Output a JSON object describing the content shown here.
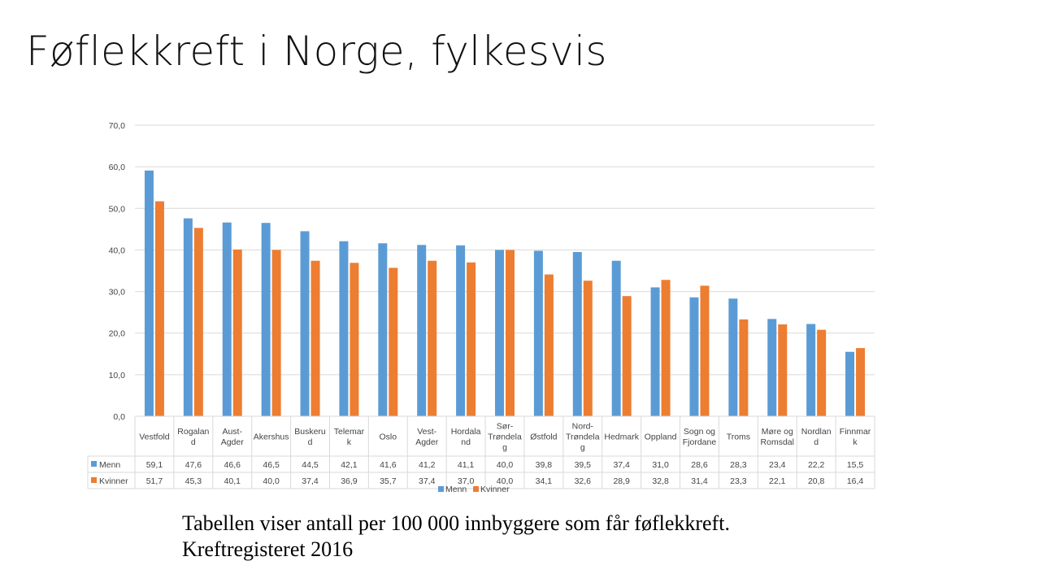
{
  "title": "Føflekkreft i Norge, fylkesvis",
  "caption": {
    "line1": "Tabellen viser antall per 100 000 innbyggere som får føflekkreft.",
    "line2": "Kreftregisteret 2016"
  },
  "chart_data": {
    "type": "bar",
    "title": "",
    "xlabel": "",
    "ylabel": "",
    "ylim": [
      0,
      70
    ],
    "yticks": [
      0,
      10,
      20,
      30,
      40,
      50,
      60,
      70
    ],
    "ytick_labels": [
      "0,0",
      "10,0",
      "20,0",
      "30,0",
      "40,0",
      "50,0",
      "60,0",
      "70,0"
    ],
    "grid": true,
    "legend_position": "bottom",
    "categories": [
      "Vestfold",
      "Rogalan\nd",
      "Aust-\nAgder",
      "Akershus",
      "Buskeru\nd",
      "Telemar\nk",
      "Oslo",
      "Vest-\nAgder",
      "Hordala\nnd",
      "Sør-\nTrøndela\ng",
      "Østfold",
      "Nord-\nTrøndela\ng",
      "Hedmark",
      "Oppland",
      "Sogn og\nFjordane",
      "Troms",
      "Møre og\nRomsdal",
      "Nordlan\nd",
      "Finnmar\nk"
    ],
    "series": [
      {
        "name": "Menn",
        "color": "#5B9BD5",
        "values": [
          59.1,
          47.6,
          46.6,
          46.5,
          44.5,
          42.1,
          41.6,
          41.2,
          41.1,
          40.0,
          39.8,
          39.5,
          37.4,
          31.0,
          28.6,
          28.3,
          23.4,
          22.2,
          15.5
        ],
        "labels": [
          "59,1",
          "47,6",
          "46,6",
          "46,5",
          "44,5",
          "42,1",
          "41,6",
          "41,2",
          "41,1",
          "40,0",
          "39,8",
          "39,5",
          "37,4",
          "31,0",
          "28,6",
          "28,3",
          "23,4",
          "22,2",
          "15,5"
        ]
      },
      {
        "name": "Kvinner",
        "color": "#ED7D31",
        "values": [
          51.7,
          45.3,
          40.1,
          40.0,
          37.4,
          36.9,
          35.7,
          37.4,
          37.0,
          40.0,
          34.1,
          32.6,
          28.9,
          32.8,
          31.4,
          23.3,
          22.1,
          20.8,
          16.4
        ],
        "labels": [
          "51,7",
          "45,3",
          "40,1",
          "40,0",
          "37,4",
          "36,9",
          "35,7",
          "37,4",
          "37,0",
          "40,0",
          "34,1",
          "32,6",
          "28,9",
          "32,8",
          "31,4",
          "23,3",
          "22,1",
          "20,8",
          "16,4"
        ]
      }
    ]
  }
}
